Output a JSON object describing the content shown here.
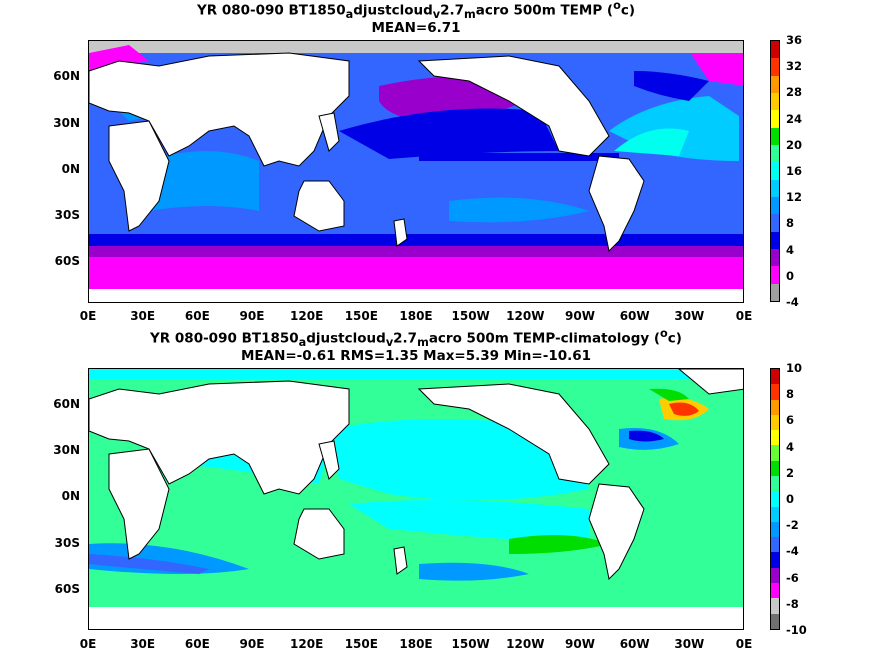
{
  "top": {
    "title": {
      "pre": "YR 080-090 BT1850",
      "s1": "a",
      "m1": "djustcloud",
      "s2": "v",
      "m2": "2.7",
      "s3": "m",
      "m3": "acro 500m TEMP (",
      "sup": "o",
      "post": "c)"
    },
    "stats": "MEAN=6.71",
    "colorbar_labels": [
      "36",
      "32",
      "28",
      "24",
      "20",
      "16",
      "12",
      "8",
      "4",
      "0",
      "-4"
    ],
    "colorbar_colors": [
      "#a0a0a0",
      "#ff00ff",
      "#9900cc",
      "#0000e6",
      "#3366ff",
      "#0099ff",
      "#00ccff",
      "#00ffee",
      "#33ff99",
      "#00dd00",
      "#ffff00",
      "#ffcc00",
      "#ff9900",
      "#ff3300",
      "#cc0000"
    ]
  },
  "bottom": {
    "title": {
      "pre": "YR 080-090 BT1850",
      "s1": "a",
      "m1": "djustcloud",
      "s2": "v",
      "m2": "2.7",
      "s3": "m",
      "m3": "acro 500m TEMP-climatology (",
      "sup": "o",
      "post": "c)"
    },
    "stats": "MEAN=-0.61   RMS=1.35   Max=5.39   Min=-10.61",
    "colorbar_labels": [
      "10",
      "8",
      "6",
      "4",
      "2",
      "0",
      "-2",
      "-4",
      "-6",
      "-8",
      "-10"
    ],
    "colorbar_colors": [
      "#707070",
      "#c8c8c8",
      "#ff00ff",
      "#9900cc",
      "#0000e6",
      "#3366ff",
      "#0099ff",
      "#00ccff",
      "#00ffff",
      "#33ff99",
      "#00dd00",
      "#66ff33",
      "#ffff00",
      "#ffcc00",
      "#ff9900",
      "#ff3300",
      "#cc0000"
    ]
  },
  "lat_labels": [
    "60N",
    "30N",
    "0N",
    "30S",
    "60S"
  ],
  "lon_labels": [
    "0E",
    "30E",
    "60E",
    "90E",
    "120E",
    "150E",
    "180E",
    "150W",
    "120W",
    "90W",
    "60W",
    "30W",
    "0E"
  ],
  "colors": {
    "land": "#ffffff",
    "coast": "#000000"
  }
}
